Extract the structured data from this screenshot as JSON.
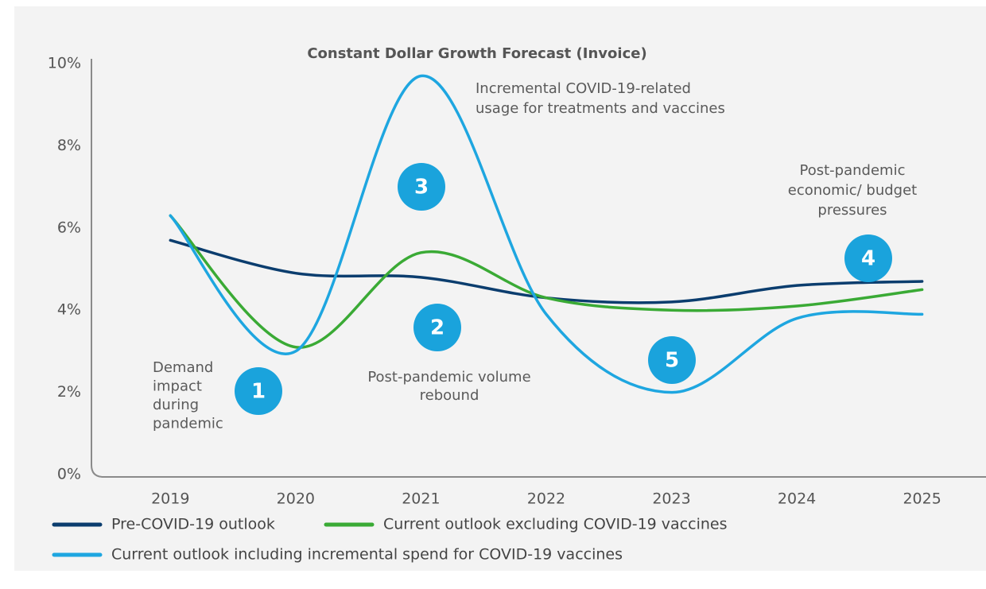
{
  "chart_data": {
    "type": "line",
    "title": "Constant Dollar Growth Forecast (Invoice)",
    "x": [
      2019,
      2020,
      2021,
      2022,
      2023,
      2024,
      2025
    ],
    "xlim": [
      2018.37,
      2025.51
    ],
    "xticks": [
      2019,
      2020,
      2021,
      2022,
      2023,
      2024,
      2025
    ],
    "ylim": [
      0,
      10
    ],
    "yticks": [
      {
        "value": 0,
        "label": "0%"
      },
      {
        "value": 2,
        "label": "2%"
      },
      {
        "value": 4,
        "label": "4%"
      },
      {
        "value": 6,
        "label": "6%"
      },
      {
        "value": 8,
        "label": "8%"
      },
      {
        "value": 10,
        "label": "10%"
      }
    ],
    "series": [
      {
        "name": "Pre-COVID-19 outlook",
        "color": "#0b3d6e",
        "values": [
          5.7,
          4.9,
          4.8,
          4.3,
          4.2,
          4.6,
          4.7
        ]
      },
      {
        "name": "Current outlook excluding COVID-19 vaccines",
        "color": "#3aaa35",
        "values": [
          6.3,
          3.1,
          5.4,
          4.3,
          4.0,
          4.1,
          4.5
        ]
      },
      {
        "name": "Current outlook including incremental spend for COVID-19 vaccines",
        "color": "#1ea6e0",
        "values": [
          6.3,
          3.0,
          9.7,
          3.9,
          2.0,
          3.8,
          3.9
        ]
      }
    ],
    "annotations": [
      {
        "badge": "1",
        "text": [
          "Demand",
          "impact",
          "during",
          "pandemic"
        ]
      },
      {
        "badge": "2",
        "text": [
          "Post-pandemic volume",
          "rebound"
        ]
      },
      {
        "badge": "3",
        "text": [
          "Incremental COVID-19-related",
          "usage for treatments and vaccines"
        ]
      },
      {
        "badge": "4",
        "text": [
          "Post-pandemic",
          "economic/ budget",
          "pressures"
        ]
      },
      {
        "badge": "5",
        "text": []
      }
    ],
    "badge_color": "#1aa3dc"
  }
}
